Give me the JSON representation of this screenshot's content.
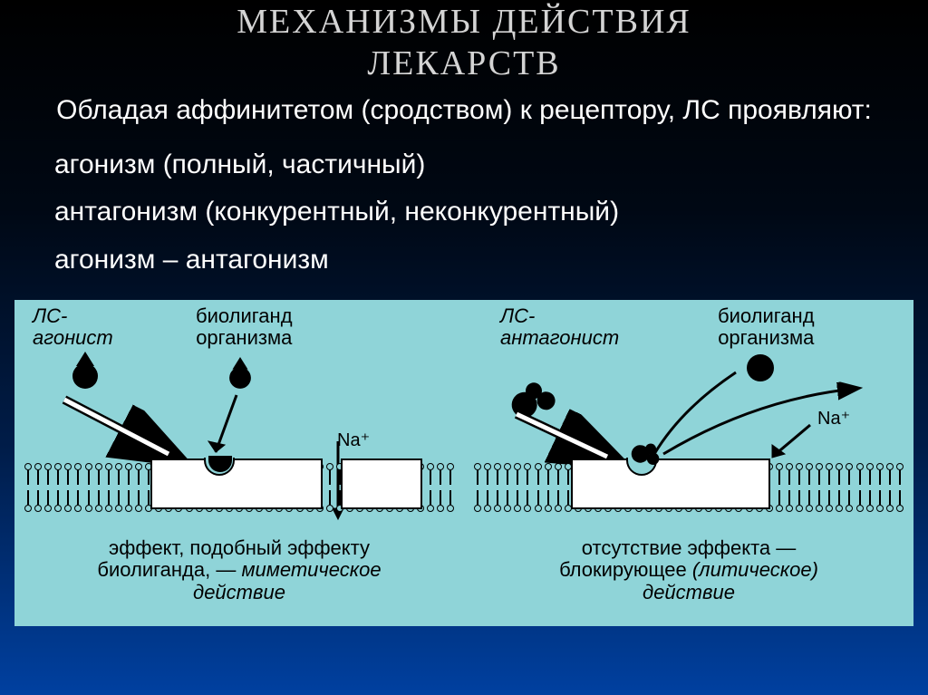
{
  "title_line1": "МЕХАНИЗМЫ ДЕЙСТВИЯ",
  "title_line2": "ЛЕКАРСТВ",
  "subtitle": "Обладая аффинитетом (сродством) к рецептору, ЛС проявляют:",
  "bullets": [
    "агонизм (полный, частичный)",
    "антагонизм (конкурентный, неконкурентный)",
    "агонизм – антагонизм"
  ],
  "diagram": {
    "bg_color": "#8fd4d8",
    "left": {
      "agonist_label_l1": "ЛС-",
      "agonist_label_l2": "агонист",
      "bioligand_label_l1": "биолиганд",
      "bioligand_label_l2": "организма",
      "na_label": "Na⁺",
      "caption_l1": "эффект, подобный эффекту",
      "caption_l2_a": "биолиганда, — ",
      "caption_l2_b": "миметическое",
      "caption_l3": "действие"
    },
    "right": {
      "antagonist_label_l1": "ЛС-",
      "antagonist_label_l2": "антагонист",
      "bioligand_label_l1": "биолиганд",
      "bioligand_label_l2": "организма",
      "na_label": "Na⁺",
      "caption_l1": "отсутствие эффекта —",
      "caption_l2_a": "блокирующее ",
      "caption_l2_b": "(литическое)",
      "caption_l3": "действие"
    }
  },
  "colors": {
    "slide_bg_gradient": [
      "#000000",
      "#000814",
      "#001d4a",
      "#0040a0"
    ],
    "title_color": "#d4d4d4",
    "text_color": "#ffffff",
    "diagram_text": "#000000"
  },
  "fonts": {
    "title_pt": 38,
    "body_pt": 30,
    "diagram_label_pt": 22
  }
}
